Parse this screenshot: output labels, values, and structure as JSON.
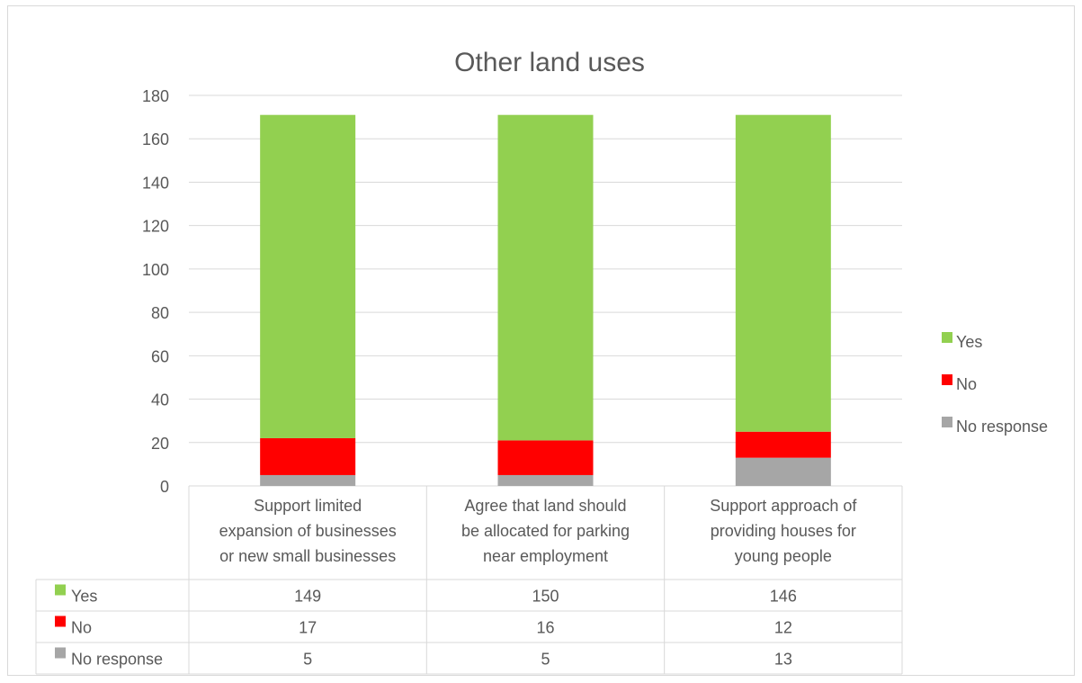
{
  "chart_data": {
    "type": "bar",
    "stacked": true,
    "title": "Other land uses",
    "categories": [
      [
        "Support limited",
        "expansion of businesses",
        "or new small businesses"
      ],
      [
        "Agree that land should",
        "be allocated for parking",
        "near employment"
      ],
      [
        "Support approach of",
        "providing houses for",
        "young people"
      ]
    ],
    "series": [
      {
        "name": "Yes",
        "color": "#92d050",
        "values": [
          149,
          150,
          146
        ]
      },
      {
        "name": "No",
        "color": "#ff0000",
        "values": [
          17,
          16,
          12
        ]
      },
      {
        "name": "No response",
        "color": "#a6a6a6",
        "values": [
          5,
          5,
          13
        ]
      }
    ],
    "stack_order_bottom_to_top": [
      "No response",
      "No",
      "Yes"
    ],
    "ylim": [
      0,
      180
    ],
    "yticks": [
      0,
      20,
      40,
      60,
      80,
      100,
      120,
      140,
      160,
      180
    ],
    "grid": true,
    "legend_position": "right",
    "data_table": true
  }
}
